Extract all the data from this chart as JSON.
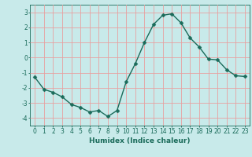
{
  "x": [
    0,
    1,
    2,
    3,
    4,
    5,
    6,
    7,
    8,
    9,
    10,
    11,
    12,
    13,
    14,
    15,
    16,
    17,
    18,
    19,
    20,
    21,
    22,
    23
  ],
  "y": [
    -1.3,
    -2.1,
    -2.3,
    -2.6,
    -3.1,
    -3.3,
    -3.6,
    -3.5,
    -3.9,
    -3.5,
    -1.6,
    -0.4,
    1.0,
    2.2,
    2.8,
    2.9,
    2.3,
    1.3,
    0.7,
    -0.1,
    -0.15,
    -0.8,
    -1.2,
    -1.25
  ],
  "line_color": "#1a6b5a",
  "marker": "D",
  "marker_size": 2.5,
  "bg_color": "#c8eaea",
  "grid_color": "#e8a0a0",
  "xlabel": "Humidex (Indice chaleur)",
  "xlim": [
    -0.5,
    23.5
  ],
  "ylim": [
    -4.5,
    3.5
  ],
  "yticks": [
    -4,
    -3,
    -2,
    -1,
    0,
    1,
    2,
    3
  ],
  "xticks": [
    0,
    1,
    2,
    3,
    4,
    5,
    6,
    7,
    8,
    9,
    10,
    11,
    12,
    13,
    14,
    15,
    16,
    17,
    18,
    19,
    20,
    21,
    22,
    23
  ],
  "xtick_labels": [
    "0",
    "1",
    "2",
    "3",
    "4",
    "5",
    "6",
    "7",
    "8",
    "9",
    "10",
    "11",
    "12",
    "13",
    "14",
    "15",
    "16",
    "17",
    "18",
    "19",
    "20",
    "21",
    "22",
    "23"
  ],
  "label_fontsize": 6.5,
  "tick_fontsize": 5.5
}
